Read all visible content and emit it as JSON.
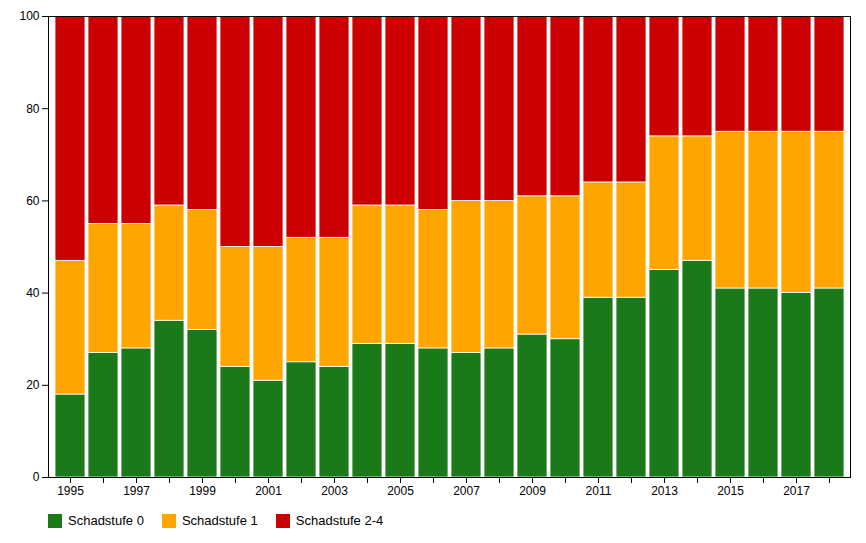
{
  "chart_data": {
    "type": "bar",
    "stacked": true,
    "categories": [
      "1995",
      null,
      "1997",
      null,
      "1999",
      null,
      "2001",
      null,
      "2003",
      null,
      "2005",
      null,
      "2007",
      null,
      "2009",
      null,
      "2011",
      null,
      "2013",
      null,
      "2015",
      null,
      "2017",
      null
    ],
    "series": [
      {
        "name": "Schadstufe 0",
        "color": "#1a7a1a",
        "values": [
          18,
          27,
          28,
          34,
          32,
          24,
          21,
          25,
          24,
          29,
          29,
          28,
          27,
          28,
          31,
          30,
          39,
          39,
          45,
          47,
          41,
          41,
          40,
          41
        ]
      },
      {
        "name": "Schadstufe 1",
        "color": "#ffa500",
        "values": [
          29,
          28,
          27,
          25,
          26,
          26,
          29,
          27,
          28,
          30,
          30,
          30,
          33,
          32,
          30,
          31,
          25,
          25,
          29,
          27,
          34,
          34,
          35,
          34
        ]
      },
      {
        "name": "Schadstufe 2-4",
        "color": "#cc0000",
        "values": [
          53,
          45,
          45,
          41,
          42,
          50,
          50,
          48,
          48,
          41,
          41,
          42,
          40,
          40,
          39,
          39,
          36,
          36,
          26,
          26,
          25,
          25,
          25,
          25
        ]
      }
    ],
    "ylim": [
      0,
      100
    ],
    "yticks": [
      0,
      20,
      40,
      60,
      80,
      100
    ],
    "grid": false,
    "legend": "bottom"
  }
}
